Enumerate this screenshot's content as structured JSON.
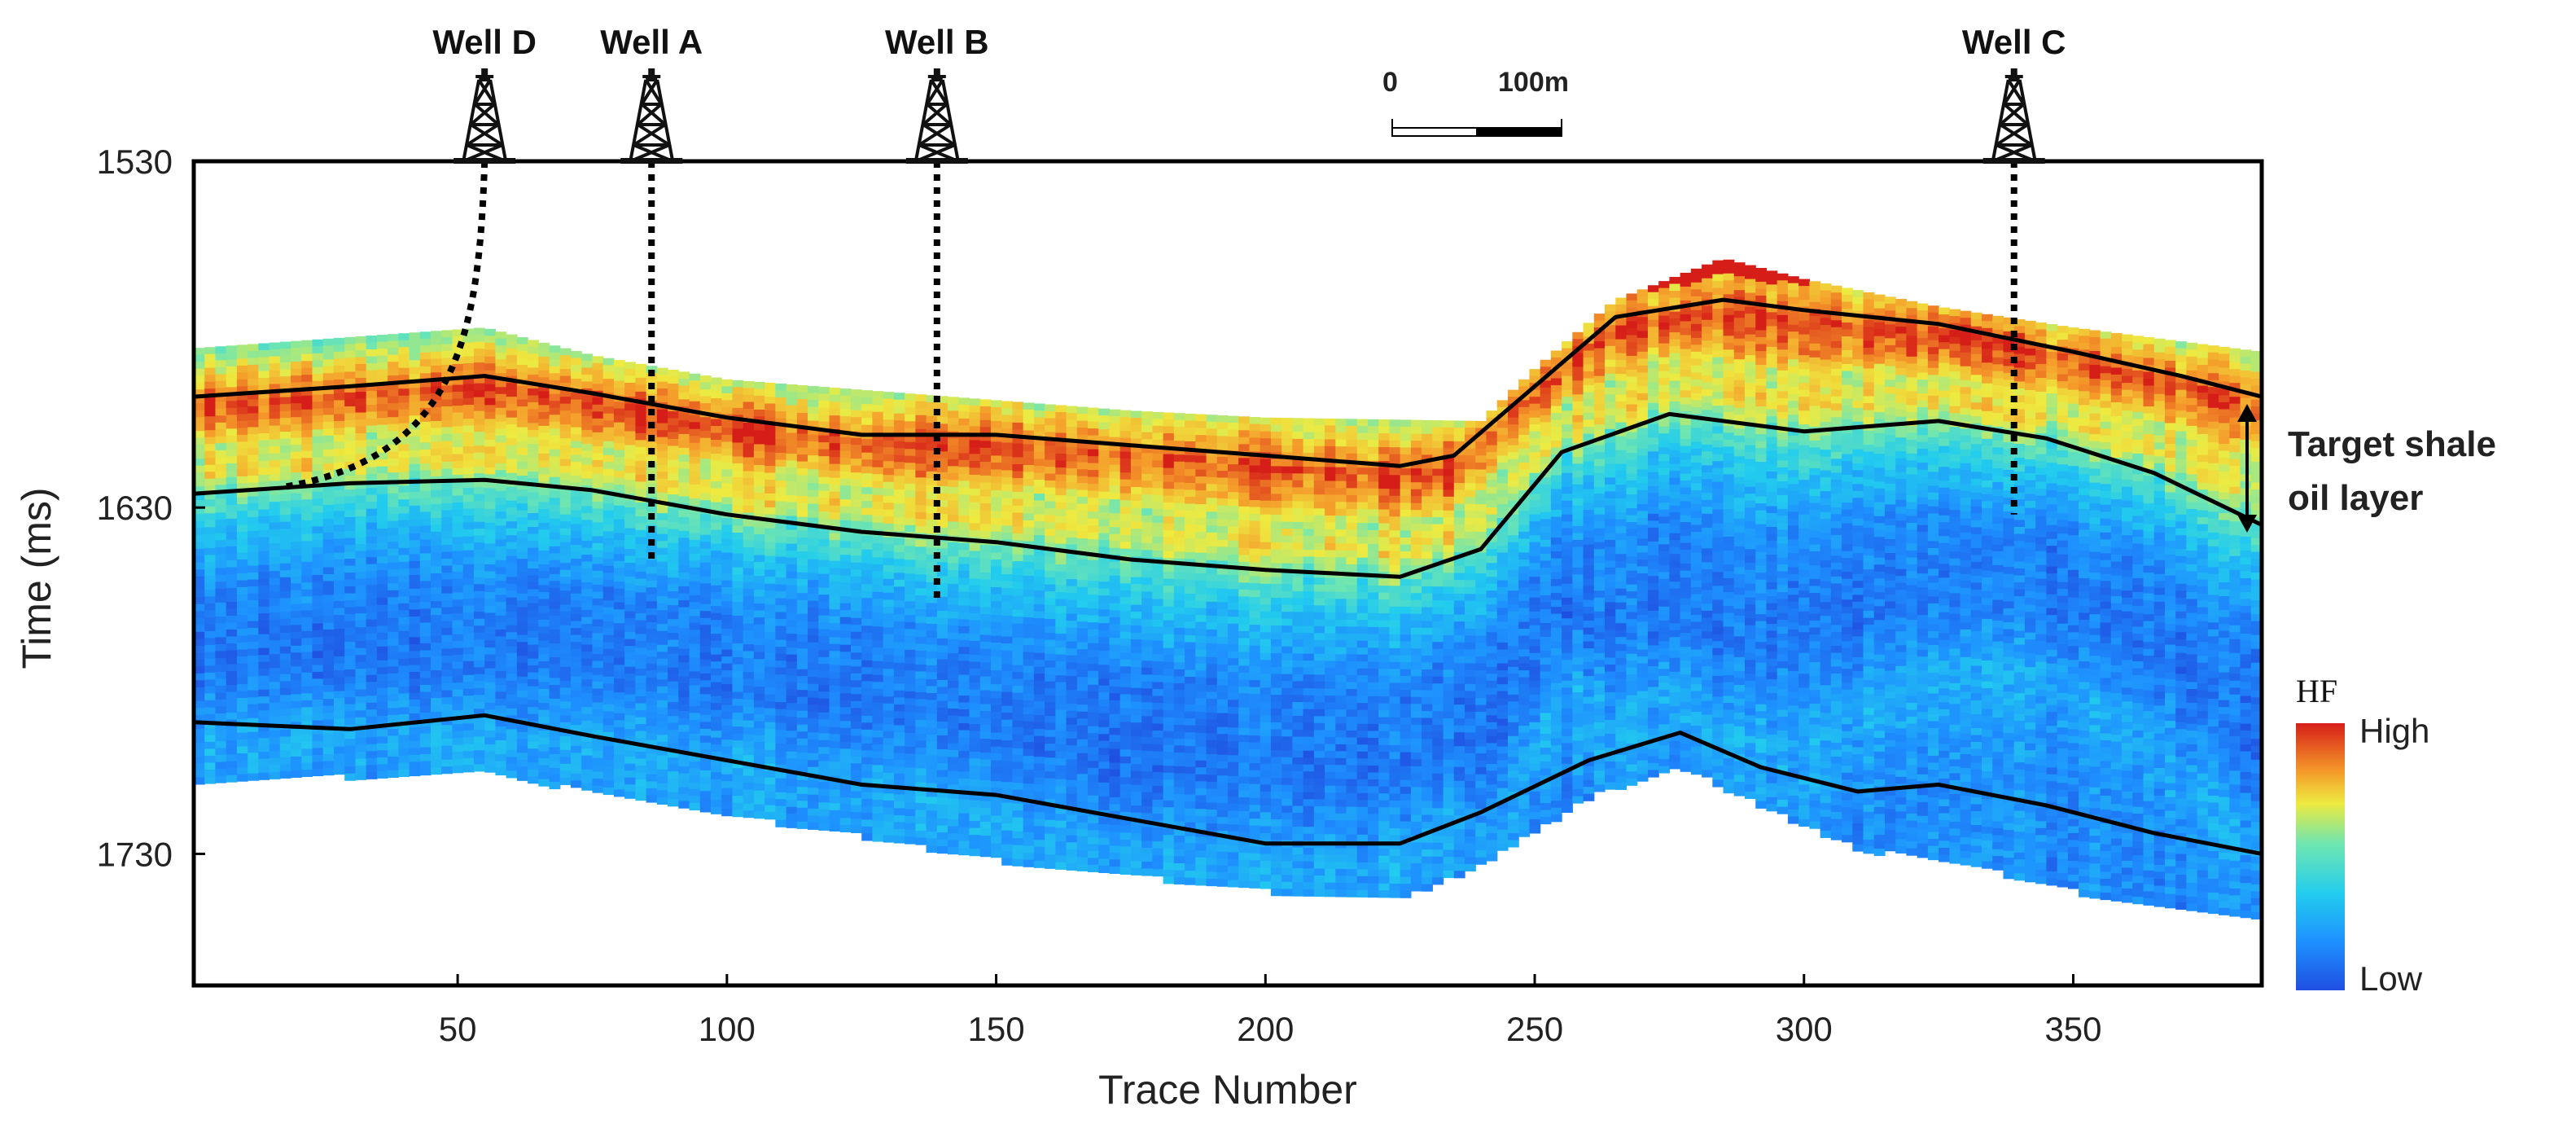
{
  "chart_data": {
    "type": "heatmap",
    "xlabel": "Trace Number",
    "ylabel": "Time (ms)",
    "xlim": [
      1,
      385
    ],
    "ylim": [
      1530,
      1768
    ],
    "x_ticks": [
      50,
      100,
      150,
      200,
      250,
      300,
      350
    ],
    "y_ticks": [
      1530,
      1630,
      1730
    ],
    "colorbar": {
      "title": "HF",
      "high_label": "High",
      "low_label": "Low"
    },
    "scale_bar": {
      "start_label": "0",
      "end_label": "100m"
    },
    "annotation": {
      "line1": "Target shale",
      "line2": "oil layer"
    },
    "wells": [
      {
        "name": "Well D",
        "trace": 55,
        "top_ms": 1530,
        "path": [
          [
            55,
            1530
          ],
          [
            54,
            1580
          ],
          [
            50,
            1615
          ],
          [
            18,
            1624
          ]
        ]
      },
      {
        "name": "Well A",
        "trace": 86,
        "top_ms": 1530,
        "path": [
          [
            86,
            1530
          ],
          [
            86,
            1646
          ]
        ]
      },
      {
        "name": "Well B",
        "trace": 139,
        "top_ms": 1530,
        "path": [
          [
            139,
            1530
          ],
          [
            139,
            1657
          ]
        ]
      },
      {
        "name": "Well C",
        "trace": 339,
        "top_ms": 1530,
        "path": [
          [
            339,
            1530
          ],
          [
            339,
            1632
          ]
        ]
      }
    ],
    "horizons": [
      {
        "name": "top of target layer",
        "points": [
          [
            1,
            1598
          ],
          [
            30,
            1595
          ],
          [
            55,
            1592
          ],
          [
            75,
            1597
          ],
          [
            100,
            1604
          ],
          [
            125,
            1609
          ],
          [
            150,
            1609
          ],
          [
            175,
            1612
          ],
          [
            200,
            1615
          ],
          [
            225,
            1618
          ],
          [
            235,
            1615
          ],
          [
            250,
            1595
          ],
          [
            265,
            1575
          ],
          [
            285,
            1570
          ],
          [
            300,
            1573
          ],
          [
            325,
            1577
          ],
          [
            350,
            1585
          ],
          [
            370,
            1592
          ],
          [
            385,
            1598
          ]
        ]
      },
      {
        "name": "base of target layer",
        "points": [
          [
            1,
            1626
          ],
          [
            30,
            1623
          ],
          [
            55,
            1622
          ],
          [
            75,
            1625
          ],
          [
            100,
            1632
          ],
          [
            125,
            1637
          ],
          [
            150,
            1640
          ],
          [
            175,
            1645
          ],
          [
            200,
            1648
          ],
          [
            225,
            1650
          ],
          [
            240,
            1642
          ],
          [
            255,
            1614
          ],
          [
            275,
            1603
          ],
          [
            300,
            1608
          ],
          [
            325,
            1605
          ],
          [
            345,
            1610
          ],
          [
            365,
            1620
          ],
          [
            385,
            1635
          ]
        ]
      },
      {
        "name": "lower horizon",
        "points": [
          [
            1,
            1692
          ],
          [
            30,
            1694
          ],
          [
            55,
            1690
          ],
          [
            75,
            1696
          ],
          [
            100,
            1703
          ],
          [
            125,
            1710
          ],
          [
            150,
            1713
          ],
          [
            175,
            1720
          ],
          [
            200,
            1727
          ],
          [
            225,
            1727
          ],
          [
            240,
            1718
          ],
          [
            260,
            1703
          ],
          [
            277,
            1695
          ],
          [
            292,
            1705
          ],
          [
            310,
            1712
          ],
          [
            325,
            1710
          ],
          [
            345,
            1716
          ],
          [
            365,
            1724
          ],
          [
            385,
            1730
          ]
        ]
      }
    ],
    "data_extent": {
      "top": [
        [
          1,
          1584
        ],
        [
          55,
          1578
        ],
        [
          75,
          1586
        ],
        [
          100,
          1593
        ],
        [
          125,
          1596
        ],
        [
          175,
          1602
        ],
        [
          200,
          1604
        ],
        [
          240,
          1605
        ],
        [
          250,
          1590
        ],
        [
          265,
          1570
        ],
        [
          285,
          1558
        ],
        [
          300,
          1564
        ],
        [
          325,
          1572
        ],
        [
          350,
          1578
        ],
        [
          385,
          1585
        ]
      ],
      "bottom": [
        [
          1,
          1708
        ],
        [
          55,
          1706
        ],
        [
          75,
          1711
        ],
        [
          100,
          1718
        ],
        [
          125,
          1724
        ],
        [
          150,
          1731
        ],
        [
          200,
          1740
        ],
        [
          225,
          1742
        ],
        [
          240,
          1733
        ],
        [
          260,
          1713
        ],
        [
          277,
          1704
        ],
        [
          292,
          1715
        ],
        [
          310,
          1728
        ],
        [
          325,
          1730
        ],
        [
          345,
          1738
        ],
        [
          365,
          1745
        ],
        [
          385,
          1748
        ]
      ]
    },
    "hf_field": {
      "description": "HF attribute along time relative to the target-layer horizons",
      "above_top_ms": 12,
      "profile": [
        {
          "rel": -1.0,
          "hf": 0.32
        },
        {
          "rel": -0.6,
          "hf": 0.42
        },
        {
          "rel": -0.2,
          "hf": 0.72
        },
        {
          "rel": 0.1,
          "hf": 0.95
        },
        {
          "rel": 0.35,
          "hf": 0.82
        },
        {
          "rel": 0.55,
          "hf": 0.62
        },
        {
          "rel": 0.8,
          "hf": 0.68
        },
        {
          "rel": 1.0,
          "hf": 0.5
        },
        {
          "rel": 1.4,
          "hf": 0.3
        },
        {
          "rel": 2.0,
          "hf": 0.14
        },
        {
          "rel": 2.8,
          "hf": 0.1
        },
        {
          "rel": 3.6,
          "hf": 0.24
        },
        {
          "rel": 4.6,
          "hf": 0.16
        }
      ],
      "colormap": [
        "#1f4fe0",
        "#1e90ff",
        "#22ccee",
        "#70e6b0",
        "#eeea40",
        "#f59a2a",
        "#d61e18"
      ]
    }
  }
}
